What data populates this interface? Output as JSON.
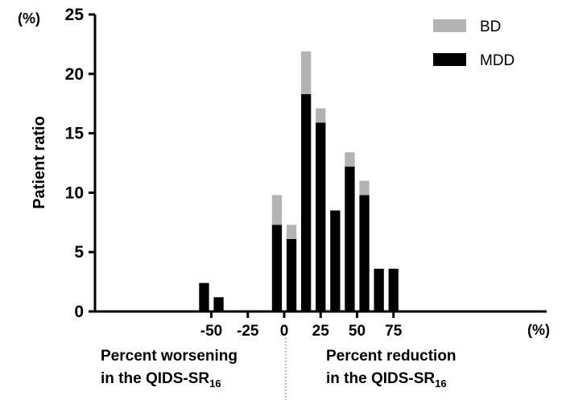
{
  "chart_data": {
    "type": "bar",
    "stacked": true,
    "title": "",
    "ylabel": "Patient ratio",
    "y_unit_label": "(%)",
    "x_unit_label": "(%)",
    "ylim": [
      0,
      25
    ],
    "y_ticks": [
      "0",
      "5",
      "10",
      "15",
      "20",
      "25"
    ],
    "x_ticks": [
      "-50",
      "-25",
      "0",
      "25",
      "50",
      "75"
    ],
    "x_tick_values": [
      -50,
      -25,
      0,
      25,
      50,
      75
    ],
    "bin_centers": [
      -55,
      -45,
      -15,
      -5,
      5,
      15,
      25,
      35,
      45,
      55,
      65,
      75
    ],
    "bin_width": 10,
    "series": [
      {
        "name": "MDD",
        "color": "#000000",
        "values": [
          2.4,
          1.2,
          0,
          7.3,
          6.1,
          18.3,
          15.9,
          8.5,
          12.2,
          9.8,
          3.6,
          3.6
        ]
      },
      {
        "name": "BD",
        "color": "#b3b3b3",
        "values": [
          0,
          0,
          0,
          2.5,
          1.2,
          3.6,
          1.2,
          0,
          1.2,
          1.2,
          0,
          0
        ]
      }
    ],
    "legend_position": "top-right",
    "legend": [
      "BD",
      "MDD"
    ],
    "region_labels": {
      "left_line1": "Percent worsening",
      "left_line2": "in the QIDS-SR",
      "left_sub": "16",
      "right_line1": "Percent reduction",
      "right_line2": "in the QIDS-SR",
      "right_sub": "16"
    }
  }
}
